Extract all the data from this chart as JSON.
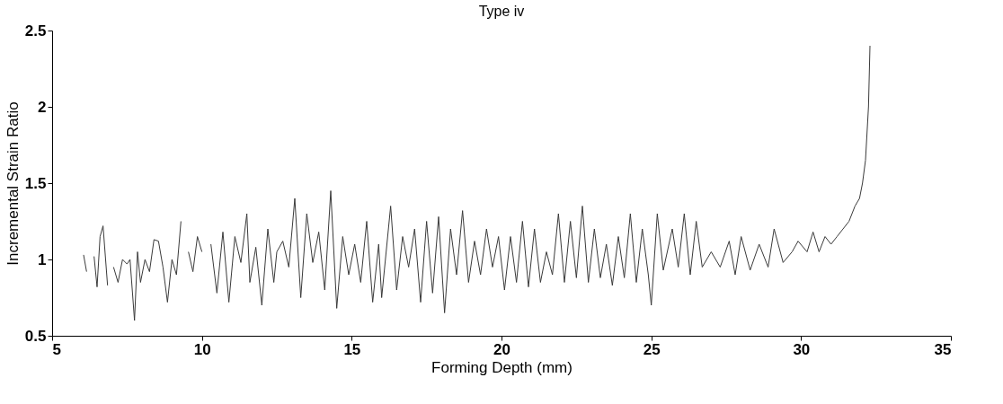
{
  "chart_data": {
    "type": "line",
    "title": "Type iv",
    "xlabel": "Forming Depth (mm)",
    "ylabel": "Incremental Strain Ratio",
    "xlim": [
      5,
      35
    ],
    "xticks": [
      5,
      10,
      15,
      20,
      25,
      30,
      35
    ],
    "ylim": [
      0.5,
      2.5
    ],
    "yticks": [
      0.5,
      1,
      1.5,
      2,
      2.5
    ],
    "grid": false,
    "marker": "none",
    "line_style": "solid",
    "series": [
      {
        "color": "#3a3a3a",
        "x": [
          6.05,
          6.15,
          6.25,
          6.4,
          6.5,
          6.6,
          6.7,
          6.85,
          6.95,
          7.05,
          7.2,
          7.35,
          7.5,
          7.6,
          7.75,
          7.85,
          7.95,
          8.1,
          8.25,
          8.4,
          8.55,
          8.7,
          8.85,
          9.0,
          9.15,
          9.3,
          9.4,
          9.55,
          9.7,
          9.85,
          10.0,
          10.1,
          10.3,
          10.5,
          10.7,
          10.9,
          11.1,
          11.3,
          11.5,
          11.6,
          11.8,
          12.0,
          12.2,
          12.4,
          12.5,
          12.7,
          12.9,
          13.1,
          13.3,
          13.5,
          13.7,
          13.9,
          14.1,
          14.3,
          14.5,
          14.7,
          14.9,
          15.1,
          15.3,
          15.5,
          15.7,
          15.9,
          16.0,
          16.3,
          16.5,
          16.7,
          16.9,
          17.1,
          17.3,
          17.5,
          17.7,
          17.9,
          18.1,
          18.3,
          18.5,
          18.7,
          18.9,
          19.1,
          19.3,
          19.5,
          19.7,
          19.9,
          20.1,
          20.3,
          20.5,
          20.7,
          20.9,
          21.1,
          21.3,
          21.5,
          21.7,
          21.9,
          22.1,
          22.3,
          22.5,
          22.7,
          22.9,
          23.1,
          23.3,
          23.5,
          23.7,
          23.9,
          24.1,
          24.3,
          24.5,
          24.7,
          24.9,
          25.0,
          25.2,
          25.4,
          25.7,
          25.9,
          26.1,
          26.3,
          26.5,
          26.7,
          27.0,
          27.3,
          27.6,
          27.8,
          28.0,
          28.3,
          28.6,
          28.9,
          29.1,
          29.4,
          29.7,
          29.9,
          30.2,
          30.4,
          30.6,
          30.8,
          31.0,
          31.2,
          31.4,
          31.6,
          31.8,
          31.95,
          32.05,
          32.15,
          32.25,
          32.3
        ],
        "values": [
          1.03,
          0.92,
          null,
          1.02,
          0.82,
          1.15,
          1.22,
          0.83,
          null,
          0.95,
          0.85,
          1.0,
          0.97,
          1.0,
          0.6,
          1.05,
          0.85,
          1.0,
          0.92,
          1.13,
          1.12,
          0.95,
          0.72,
          1.0,
          0.9,
          1.25,
          null,
          1.05,
          0.92,
          1.15,
          1.05,
          null,
          1.1,
          0.78,
          1.18,
          0.72,
          1.15,
          0.98,
          1.3,
          0.85,
          1.08,
          0.7,
          1.2,
          0.85,
          1.05,
          1.12,
          0.95,
          1.4,
          0.75,
          1.3,
          0.98,
          1.18,
          0.8,
          1.45,
          0.68,
          1.15,
          0.9,
          1.1,
          0.85,
          1.25,
          0.72,
          1.1,
          0.75,
          1.35,
          0.8,
          1.15,
          0.95,
          1.2,
          0.72,
          1.25,
          0.78,
          1.28,
          0.65,
          1.2,
          0.9,
          1.32,
          0.85,
          1.12,
          0.9,
          1.2,
          0.95,
          1.15,
          0.8,
          1.15,
          0.85,
          1.25,
          0.82,
          1.2,
          0.85,
          1.05,
          0.9,
          1.3,
          0.85,
          1.25,
          0.88,
          1.35,
          0.85,
          1.2,
          0.88,
          1.1,
          0.83,
          1.15,
          0.88,
          1.3,
          0.85,
          1.2,
          0.9,
          0.7,
          1.3,
          0.93,
          1.2,
          0.95,
          1.3,
          0.9,
          1.25,
          0.95,
          1.05,
          0.95,
          1.12,
          0.9,
          1.15,
          0.93,
          1.1,
          0.95,
          1.2,
          0.98,
          1.05,
          1.12,
          1.05,
          1.18,
          1.05,
          1.15,
          1.1,
          1.15,
          1.2,
          1.25,
          1.35,
          1.4,
          1.5,
          1.65,
          2.0,
          2.4
        ]
      }
    ]
  }
}
